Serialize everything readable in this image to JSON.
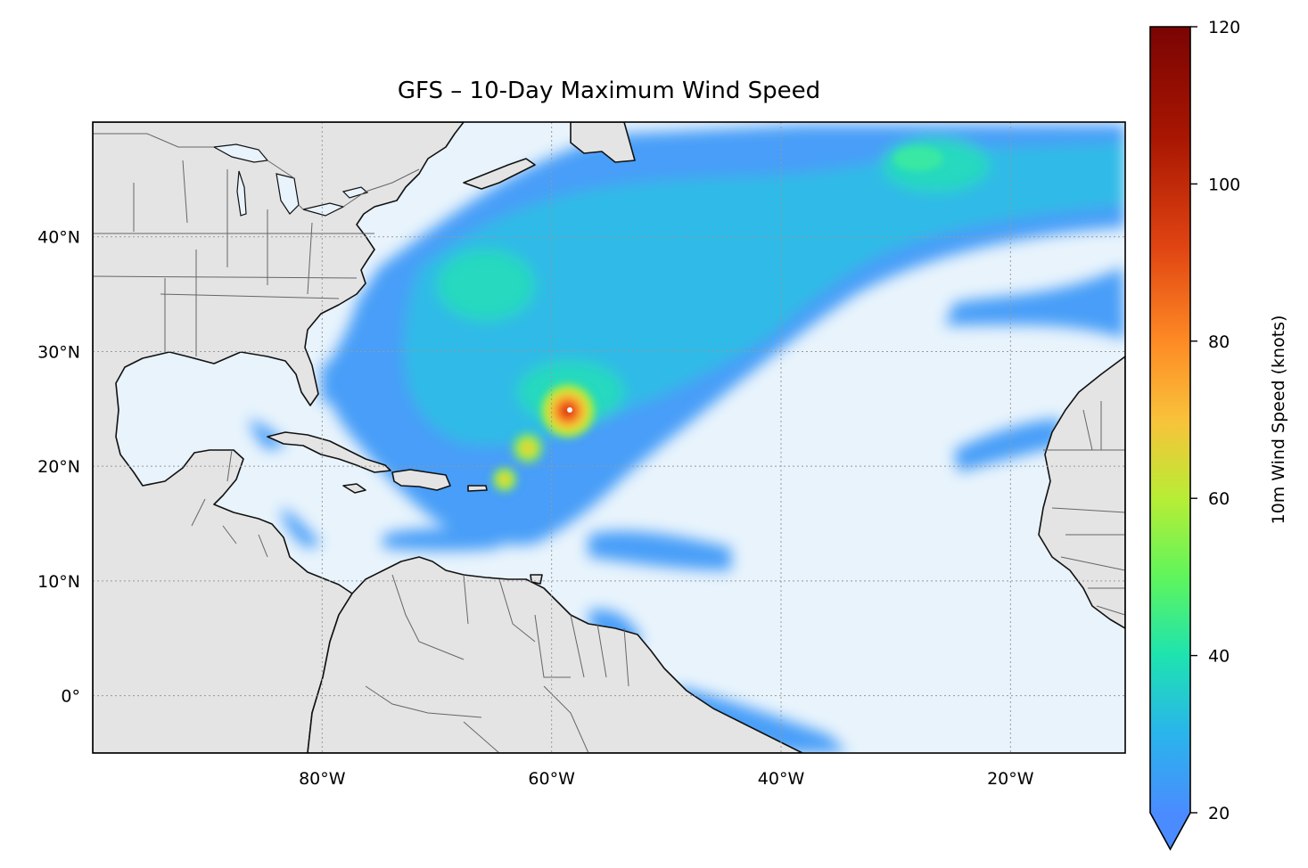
{
  "title": "GFS – 10-Day Maximum Wind Speed",
  "map": {
    "extent": {
      "lon": [
        -100,
        -10
      ],
      "lat": [
        -5,
        50
      ]
    },
    "lon_ticks": [
      {
        "value": -80,
        "label": "80°W"
      },
      {
        "value": -60,
        "label": "60°W"
      },
      {
        "value": -40,
        "label": "40°W"
      },
      {
        "value": -20,
        "label": "20°W"
      }
    ],
    "lat_ticks": [
      {
        "value": 40,
        "label": "40°N"
      },
      {
        "value": 30,
        "label": "30°N"
      },
      {
        "value": 20,
        "label": "20°N"
      },
      {
        "value": 10,
        "label": "10°N"
      },
      {
        "value": 0,
        "label": "0°"
      }
    ],
    "gridlines": true,
    "colors": {
      "ocean": "#e8f3fc",
      "land": "#e4e4e4",
      "coast": "#000000",
      "border": "#666666"
    }
  },
  "colorbar": {
    "label": "10m Wind Speed (knots)",
    "range": [
      20,
      120
    ],
    "extend": "min",
    "ticks": [
      {
        "value": 20,
        "label": "20"
      },
      {
        "value": 40,
        "label": "40"
      },
      {
        "value": 60,
        "label": "60"
      },
      {
        "value": 80,
        "label": "80"
      },
      {
        "value": 100,
        "label": "100"
      },
      {
        "value": 120,
        "label": "120"
      }
    ],
    "colormap": [
      "#4a8cff",
      "#2ab4ec",
      "#1ee3b0",
      "#5ff55c",
      "#b8ed35",
      "#f9c23a",
      "#fe8a25",
      "#e04412",
      "#a81602",
      "#7a0403"
    ]
  },
  "features": [
    {
      "name": "hurricane-core",
      "lon": -58.5,
      "lat": 24.8,
      "max": 105
    },
    {
      "name": "storm-core",
      "lon": -62.3,
      "lat": 21.6,
      "max": 70
    },
    {
      "name": "storm-core",
      "lon": -64.2,
      "lat": 18.8,
      "max": 65
    },
    {
      "name": "extratropical-low",
      "lon": -28,
      "lat": 46.5,
      "max": 45
    }
  ]
}
